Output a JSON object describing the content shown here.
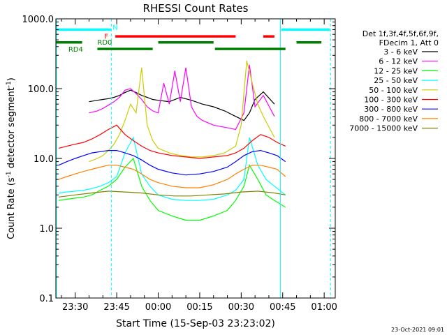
{
  "chart_data": {
    "type": "line",
    "title": "RHESSI Count Rates",
    "xlabel": "Start Time (15-Sep-03 23:23:02)",
    "ylabel_main": "Count Rate (s",
    "ylabel_sup1": "-1",
    "ylabel_mid": " detector segment",
    "ylabel_sup2": "-1",
    "ylabel_end": ")",
    "yscale": "log",
    "ylim": [
      0.1,
      1000
    ],
    "xlim_min": [
      -37,
      64
    ],
    "x_ticks": [
      {
        "m": -30,
        "label": "23:30"
      },
      {
        "m": -15,
        "label": "23:45"
      },
      {
        "m": 0,
        "label": "00:00"
      },
      {
        "m": 15,
        "label": "00:15"
      },
      {
        "m": 30,
        "label": "00:30"
      },
      {
        "m": 45,
        "label": "00:45"
      },
      {
        "m": 60,
        "label": "01:00"
      }
    ],
    "y_ticks": [
      {
        "v": 0.1,
        "label": "0.1"
      },
      {
        "v": 1,
        "label": "1.0"
      },
      {
        "v": 10,
        "label": "10.0"
      },
      {
        "v": 100,
        "label": "100.0"
      },
      {
        "v": 1000,
        "label": "1000.0"
      }
    ],
    "legend_header": [
      "Det 1f,3f,4f,5f,6f,9f,",
      "FDecim 1, Att 0"
    ],
    "series": [
      {
        "name": "3 - 6 keV",
        "color": "#000000",
        "x": [
          -25,
          -22,
          -20,
          -18,
          -16,
          -14,
          -12,
          -10,
          -8,
          -6,
          -4,
          -2,
          0,
          4,
          8,
          12,
          16,
          20,
          24,
          28,
          31,
          33,
          35,
          38,
          42
        ],
        "values": [
          65,
          68,
          70,
          72,
          75,
          80,
          88,
          95,
          88,
          80,
          75,
          70,
          68,
          65,
          75,
          68,
          60,
          55,
          48,
          40,
          35,
          45,
          70,
          90,
          60
        ]
      },
      {
        "name": "6 - 12 keV",
        "color": "#ff00ff",
        "x": [
          -25,
          -22,
          -20,
          -18,
          -16,
          -14,
          -12,
          -10,
          -8,
          -6,
          -4,
          -2,
          0,
          2,
          4,
          6,
          8,
          10,
          12,
          14,
          16,
          20,
          24,
          28,
          31,
          33,
          35,
          38,
          42
        ],
        "values": [
          45,
          48,
          52,
          58,
          65,
          75,
          95,
          100,
          85,
          70,
          55,
          48,
          45,
          120,
          60,
          180,
          65,
          200,
          55,
          40,
          35,
          30,
          28,
          26,
          45,
          220,
          55,
          80,
          40
        ]
      },
      {
        "name": "12 - 25 keV",
        "color": "#00ff00",
        "x": [
          -36,
          -33,
          -30,
          -27,
          -24,
          -21,
          -18,
          -15,
          -12,
          -9,
          -6,
          -3,
          0,
          5,
          10,
          15,
          20,
          25,
          28,
          31,
          33,
          36,
          39,
          42,
          46
        ],
        "values": [
          2.5,
          2.6,
          2.7,
          2.8,
          3.0,
          3.5,
          4.0,
          5.0,
          7.5,
          10,
          4.0,
          2.5,
          1.8,
          1.5,
          1.3,
          1.3,
          1.5,
          1.8,
          2.5,
          4.0,
          8.0,
          5.0,
          3.0,
          2.5,
          2.0
        ]
      },
      {
        "name": "25 - 50 keV",
        "color": "#00ffff",
        "x": [
          -36,
          -33,
          -30,
          -27,
          -24,
          -21,
          -18,
          -15,
          -12,
          -9,
          -6,
          -3,
          0,
          5,
          10,
          15,
          20,
          25,
          28,
          31,
          33,
          36,
          39,
          42,
          46
        ],
        "values": [
          3.2,
          3.3,
          3.4,
          3.5,
          3.7,
          4.0,
          4.5,
          5.5,
          12,
          20,
          6.0,
          4.0,
          3.0,
          2.6,
          2.5,
          2.5,
          2.6,
          3.0,
          3.5,
          5.0,
          20,
          8.0,
          5.0,
          4.0,
          3.0
        ]
      },
      {
        "name": "50 - 100 keV",
        "color": "#cccc00",
        "x": [
          -25,
          -22,
          -20,
          -18,
          -16,
          -14,
          -12,
          -10,
          -8,
          -6,
          -4,
          -2,
          0,
          4,
          8,
          12,
          16,
          20,
          24,
          28,
          30,
          32,
          34,
          36,
          38,
          42
        ],
        "values": [
          9,
          10,
          11,
          13,
          16,
          22,
          35,
          60,
          45,
          200,
          30,
          18,
          14,
          12,
          11,
          10.5,
          10.5,
          11,
          12,
          15,
          30,
          250,
          120,
          60,
          40,
          20
        ]
      },
      {
        "name": "100 - 300 keV",
        "color": "#ff0000",
        "x": [
          -36,
          -33,
          -30,
          -27,
          -24,
          -21,
          -18,
          -15,
          -12,
          -9,
          -6,
          -3,
          0,
          5,
          10,
          15,
          20,
          25,
          28,
          31,
          34,
          37,
          40,
          43,
          46
        ],
        "values": [
          14,
          15,
          16,
          17,
          19,
          22,
          26,
          30,
          22,
          18,
          15,
          13,
          12,
          11,
          10.5,
          10,
          10.5,
          11,
          12,
          14,
          18,
          22,
          20,
          17,
          15
        ]
      },
      {
        "name": "300 - 800 keV",
        "color": "#0000ff",
        "x": [
          -36,
          -33,
          -30,
          -27,
          -24,
          -21,
          -18,
          -15,
          -12,
          -9,
          -6,
          -3,
          0,
          5,
          10,
          15,
          20,
          25,
          28,
          31,
          34,
          37,
          40,
          43,
          46
        ],
        "values": [
          8,
          9,
          10,
          11,
          12,
          12.5,
          13,
          13,
          12,
          11,
          9.5,
          8,
          7,
          6.2,
          5.8,
          6,
          6.5,
          7.5,
          9,
          11,
          12.5,
          13,
          12,
          11,
          9
        ]
      },
      {
        "name": "800 - 7000 keV",
        "color": "#ff8000",
        "x": [
          -36,
          -33,
          -30,
          -27,
          -24,
          -21,
          -18,
          -15,
          -12,
          -9,
          -6,
          -3,
          0,
          5,
          10,
          15,
          20,
          25,
          28,
          31,
          34,
          37,
          40,
          43,
          46
        ],
        "values": [
          5,
          5.5,
          6,
          6.5,
          7,
          7.5,
          8,
          8,
          7.5,
          7,
          6,
          5,
          4.5,
          4,
          3.8,
          3.8,
          4.2,
          5,
          6,
          7,
          8,
          8,
          7.5,
          7,
          5.5
        ]
      },
      {
        "name": "7000 - 15000 keV",
        "color": "#808000",
        "x": [
          -36,
          -30,
          -24,
          -18,
          -12,
          -6,
          0,
          6,
          12,
          18,
          24,
          30,
          36,
          42,
          46
        ],
        "values": [
          2.8,
          3.0,
          3.2,
          3.4,
          3.3,
          3.2,
          3.0,
          2.9,
          2.9,
          3.0,
          3.1,
          3.3,
          3.4,
          3.2,
          3.0
        ]
      }
    ],
    "vlines": [
      {
        "m": -36.8,
        "color": "#00ffff",
        "dash": false
      },
      {
        "m": -16.9,
        "color": "#00ffff",
        "dash": true
      },
      {
        "m": 44.2,
        "color": "#00ffff",
        "dash": false
      },
      {
        "m": 62.3,
        "color": "#00ffff",
        "dash": true
      }
    ],
    "flag_bars": [
      {
        "color": "#00ffff",
        "v": 700,
        "segments": [
          [
            -37,
            -17
          ],
          [
            44.5,
            62
          ]
        ]
      },
      {
        "color": "#ff0000",
        "v": 560,
        "segments": [
          [
            -15.5,
            28
          ],
          [
            38,
            42
          ]
        ]
      },
      {
        "color": "#008000",
        "v": 460,
        "segments": [
          [
            -37,
            -27.5
          ],
          [
            0,
            20
          ],
          [
            50,
            59
          ]
        ]
      },
      {
        "color": "#008000",
        "v": 370,
        "segments": [
          [
            -22,
            -2
          ],
          [
            20.5,
            46
          ]
        ]
      }
    ],
    "flag_labels": [
      {
        "text": "N",
        "color": "#00ffff",
        "m": -16.5,
        "v": 770
      },
      {
        "text": "F",
        "color": "#ff0000",
        "m": -19.5,
        "v": 570
      },
      {
        "text": "RD0",
        "color": "#008000",
        "m": -22,
        "v": 470
      },
      {
        "text": "RD4",
        "color": "#008000",
        "m": -32.5,
        "v": 370
      }
    ],
    "footer_date": "23-Oct-2021 09:01"
  }
}
